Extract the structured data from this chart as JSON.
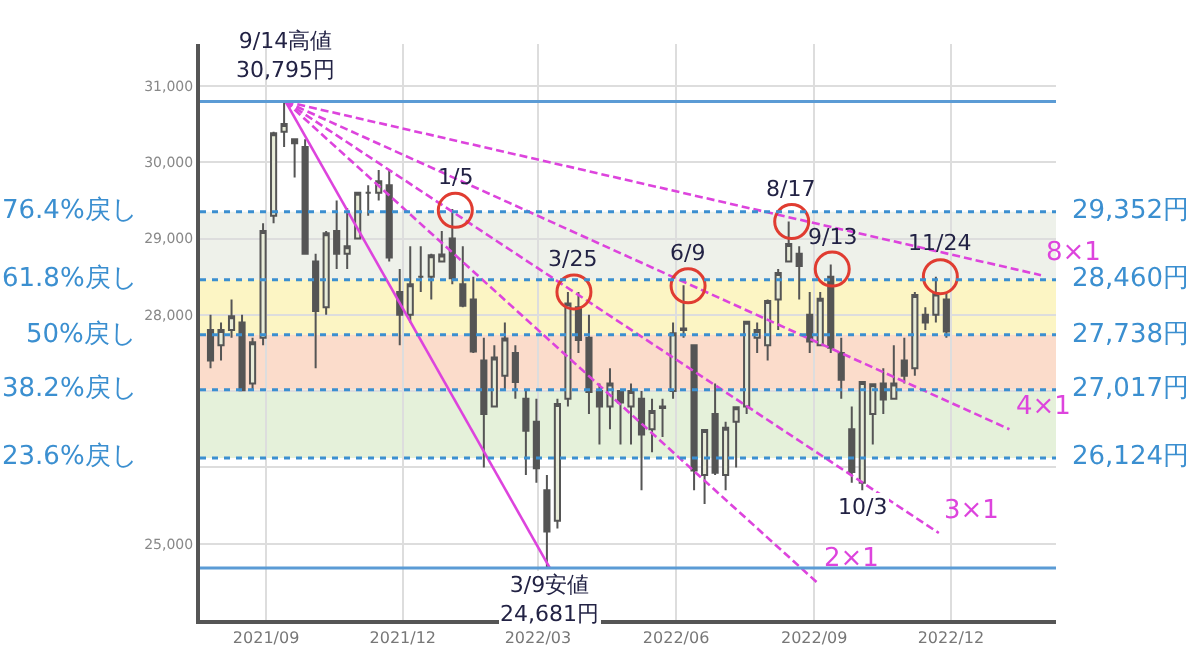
{
  "chart_data": {
    "type": "candlestick",
    "color": "#555555",
    "grid": true,
    "xlim": [
      "2021-07-19",
      "2023-02-09"
    ],
    "xticks": [
      {
        "value": "2021-09-01",
        "label": "2021/09"
      },
      {
        "value": "2021-12-01",
        "label": "2021/12"
      },
      {
        "value": "2022-03-01",
        "label": "2022/03"
      },
      {
        "value": "2022-06-01",
        "label": "2022/06"
      },
      {
        "value": "2022-09-01",
        "label": "2022/09"
      },
      {
        "value": "2022-12-01",
        "label": "2022/12"
      }
    ],
    "ylim": [
      24000,
      31550
    ],
    "yticks": [
      {
        "value": 25000,
        "label": "25,000"
      },
      {
        "value": 26000,
        "label": null
      },
      {
        "value": 27000,
        "label": null
      },
      {
        "value": 28000,
        "label": "28,000"
      },
      {
        "value": 29000,
        "label": "29,000"
      },
      {
        "value": 30000,
        "label": "30,000"
      },
      {
        "value": 31000,
        "label": "31,000"
      }
    ],
    "x": [
      "2021-07-26",
      "2021-08-02",
      "2021-08-09",
      "2021-08-16",
      "2021-08-23",
      "2021-08-30",
      "2021-09-06",
      "2021-09-13",
      "2021-09-20",
      "2021-09-27",
      "2021-10-04",
      "2021-10-11",
      "2021-10-18",
      "2021-10-25",
      "2021-11-01",
      "2021-11-08",
      "2021-11-15",
      "2021-11-22",
      "2021-11-29",
      "2021-12-06",
      "2021-12-13",
      "2021-12-20",
      "2021-12-27",
      "2022-01-03",
      "2022-01-10",
      "2022-01-17",
      "2022-01-24",
      "2022-01-31",
      "2022-02-07",
      "2022-02-14",
      "2022-02-21",
      "2022-02-28",
      "2022-03-07",
      "2022-03-14",
      "2022-03-21",
      "2022-03-28",
      "2022-04-04",
      "2022-04-11",
      "2022-04-18",
      "2022-04-25",
      "2022-05-02",
      "2022-05-09",
      "2022-05-16",
      "2022-05-23",
      "2022-05-30",
      "2022-06-06",
      "2022-06-13",
      "2022-06-20",
      "2022-06-27",
      "2022-07-04",
      "2022-07-11",
      "2022-07-18",
      "2022-07-25",
      "2022-08-01",
      "2022-08-08",
      "2022-08-15",
      "2022-08-22",
      "2022-08-29",
      "2022-09-05",
      "2022-09-12",
      "2022-09-19",
      "2022-09-26",
      "2022-10-03",
      "2022-10-10",
      "2022-10-17",
      "2022-10-24",
      "2022-10-31",
      "2022-11-07",
      "2022-11-14",
      "2022-11-21",
      "2022-11-28"
    ],
    "ohlc": [
      [
        27800,
        28000,
        27300,
        27400
      ],
      [
        27600,
        27900,
        27400,
        27800
      ],
      [
        27800,
        28200,
        27700,
        27980
      ],
      [
        27900,
        28000,
        27000,
        27010
      ],
      [
        27100,
        27700,
        27000,
        27640
      ],
      [
        27700,
        29200,
        27600,
        29100
      ],
      [
        29300,
        30400,
        29200,
        30380
      ],
      [
        30400,
        30795,
        30200,
        30500
      ],
      [
        30300,
        30300,
        29800,
        30250
      ],
      [
        30200,
        30300,
        28800,
        28800
      ],
      [
        28700,
        28800,
        27300,
        28050
      ],
      [
        28100,
        29100,
        28000,
        29070
      ],
      [
        29100,
        29500,
        28600,
        28800
      ],
      [
        28800,
        29400,
        28600,
        28900
      ],
      [
        29000,
        29600,
        29000,
        29600
      ],
      [
        29600,
        29700,
        29300,
        29600
      ],
      [
        29600,
        29900,
        29500,
        29750
      ],
      [
        29700,
        29900,
        28700,
        28750
      ],
      [
        28300,
        28600,
        27600,
        28000
      ],
      [
        28000,
        28900,
        27900,
        28400
      ],
      [
        28500,
        28900,
        28300,
        28500
      ],
      [
        28500,
        28800,
        28200,
        28780
      ],
      [
        28700,
        29100,
        28700,
        28790
      ],
      [
        29000,
        29388,
        28400,
        28480
      ],
      [
        28400,
        28900,
        28100,
        28120
      ],
      [
        28200,
        28500,
        27500,
        27520
      ],
      [
        27400,
        27700,
        26000,
        26700
      ],
      [
        26800,
        27600,
        26800,
        27440
      ],
      [
        27200,
        27900,
        27000,
        27690
      ],
      [
        27500,
        27600,
        26900,
        27120
      ],
      [
        26900,
        27000,
        25900,
        26480
      ],
      [
        26600,
        26900,
        25800,
        25990
      ],
      [
        25700,
        25900,
        24681,
        25160
      ],
      [
        25300,
        26900,
        25200,
        26830
      ],
      [
        26900,
        28300,
        26800,
        28150
      ],
      [
        28100,
        28300,
        27500,
        27670
      ],
      [
        27700,
        28000,
        26700,
        26990
      ],
      [
        27000,
        27100,
        26300,
        26800
      ],
      [
        26800,
        27300,
        26500,
        27100
      ],
      [
        27000,
        27000,
        26300,
        26850
      ],
      [
        26800,
        27100,
        26300,
        27000
      ],
      [
        26900,
        27000,
        25700,
        26430
      ],
      [
        26500,
        26900,
        26200,
        26740
      ],
      [
        26800,
        26900,
        26400,
        26780
      ],
      [
        27000,
        27900,
        26900,
        27760
      ],
      [
        27800,
        28389,
        27700,
        27820
      ],
      [
        27600,
        27600,
        25700,
        25960
      ],
      [
        25900,
        26500,
        25520,
        26490
      ],
      [
        26700,
        27100,
        25900,
        25930
      ],
      [
        25900,
        26600,
        25700,
        26520
      ],
      [
        26600,
        26800,
        26000,
        26790
      ],
      [
        26800,
        27910,
        26700,
        27910
      ],
      [
        27700,
        27900,
        27500,
        27800
      ],
      [
        27600,
        28200,
        27400,
        28180
      ],
      [
        28200,
        28600,
        27800,
        28550
      ],
      [
        28700,
        29222,
        28700,
        28930
      ],
      [
        28800,
        28900,
        28200,
        28640
      ],
      [
        28000,
        28300,
        27500,
        27650
      ],
      [
        27600,
        28300,
        27600,
        28210
      ],
      [
        28500,
        28660,
        27500,
        27570
      ],
      [
        27500,
        27700,
        26900,
        27150
      ],
      [
        26500,
        26800,
        25800,
        25940
      ],
      [
        25800,
        27120,
        25700,
        27120
      ],
      [
        26700,
        27100,
        26300,
        27090
      ],
      [
        27100,
        27300,
        26700,
        26890
      ],
      [
        26900,
        27600,
        26900,
        27100
      ],
      [
        27400,
        27700,
        27100,
        27200
      ],
      [
        27300,
        28300,
        27200,
        28260
      ],
      [
        28000,
        28100,
        27800,
        27900
      ],
      [
        28000,
        28500,
        27900,
        28280
      ],
      [
        28200,
        28300,
        27700,
        27780
      ]
    ],
    "series": [
      {
        "type": "line",
        "color": "#dd44dd",
        "line_style": "solid",
        "x": [
          "2021-09-14",
          "2022-03-09"
        ],
        "values": [
          30795,
          24681
        ]
      },
      {
        "type": "line",
        "name": "2×1",
        "color": "#dd44dd",
        "line_style": "dashed",
        "x": [
          "2021-09-14",
          "2022-09-03"
        ],
        "values": [
          30795,
          24490
        ]
      },
      {
        "type": "line",
        "name": "3×1",
        "color": "#dd44dd",
        "line_style": "dashed",
        "x": [
          "2021-09-14",
          "2022-11-23"
        ],
        "values": [
          30795,
          25140
        ]
      },
      {
        "type": "line",
        "name": "4×1",
        "color": "#dd44dd",
        "line_style": "dashed",
        "x": [
          "2021-09-14",
          "2023-01-09"
        ],
        "values": [
          30795,
          26500
        ]
      },
      {
        "type": "line",
        "name": "8×1",
        "color": "#dd44dd",
        "line_style": "dashed",
        "x": [
          "2021-09-14",
          "2023-01-30"
        ],
        "values": [
          30795,
          28520
        ]
      },
      {
        "type": "scatter",
        "color": "#e03c31",
        "marker": "circle",
        "x": [
          "2022-01-05",
          "2022-03-25",
          "2022-06-09",
          "2022-08-17",
          "2022-09-13",
          "2022-11-24"
        ],
        "values": [
          29370,
          28300,
          28380,
          29222,
          28600,
          28500
        ]
      }
    ],
    "bands": [
      {
        "axis": "y",
        "from": 28460,
        "to": 29352,
        "color": "#eef1ea"
      },
      {
        "axis": "y",
        "from": 27738,
        "to": 28460,
        "color": "#fcf5c4"
      },
      {
        "axis": "y",
        "from": 27017,
        "to": 27738,
        "color": "#fbdccb"
      },
      {
        "axis": "y",
        "from": 26124,
        "to": 27017,
        "color": "#e5f1da"
      }
    ],
    "ref_lines": [
      {
        "axis": "y",
        "value": 30795,
        "color": "#5b9bd5",
        "line_style": "solid"
      },
      {
        "axis": "y",
        "value": 24681,
        "color": "#5b9bd5",
        "line_style": "solid"
      },
      {
        "axis": "y",
        "value": 29352,
        "label": "76.4%戻し",
        "color": "#3b8fd0",
        "line_style": "dotted"
      },
      {
        "axis": "y",
        "value": 28460,
        "label": "61.8%戻し",
        "color": "#3b8fd0",
        "line_style": "dotted"
      },
      {
        "axis": "y",
        "value": 27738,
        "label": "50%戻し",
        "color": "#3b8fd0",
        "line_style": "dotted"
      },
      {
        "axis": "y",
        "value": 27017,
        "label": "38.2%戻し",
        "color": "#3b8fd0",
        "line_style": "dotted"
      },
      {
        "axis": "y",
        "value": 26124,
        "label": "23.6%戻し",
        "color": "#3b8fd0",
        "line_style": "dotted"
      }
    ],
    "annotations": [
      {
        "text": "9/14高値\n30,795円",
        "x": "2021-09-14",
        "y": 30795
      },
      {
        "text": "3/9安値\n24,681円",
        "x": "2022-03-09",
        "y": 24681
      },
      {
        "text": "1/5",
        "x": "2022-01-05",
        "y": 29370
      },
      {
        "text": "3/25",
        "x": "2022-03-25",
        "y": 28300
      },
      {
        "text": "6/9",
        "x": "2022-06-09",
        "y": 28380
      },
      {
        "text": "8/17",
        "x": "2022-08-17",
        "y": 29222
      },
      {
        "text": "9/13",
        "x": "2022-09-13",
        "y": 28600
      },
      {
        "text": "11/24",
        "x": "2022-11-24",
        "y": 28500
      },
      {
        "text": "10/3",
        "x": "2022-10-03",
        "y": 25700
      },
      {
        "text": "29,352円",
        "x": "2023-02-09",
        "y": 29352
      },
      {
        "text": "28,460円",
        "x": "2023-02-09",
        "y": 28460
      },
      {
        "text": "27,738円",
        "x": "2023-02-09",
        "y": 27738
      },
      {
        "text": "27,017円",
        "x": "2023-02-09",
        "y": 27017
      },
      {
        "text": "26,124円",
        "x": "2023-02-09",
        "y": 26124
      }
    ]
  }
}
